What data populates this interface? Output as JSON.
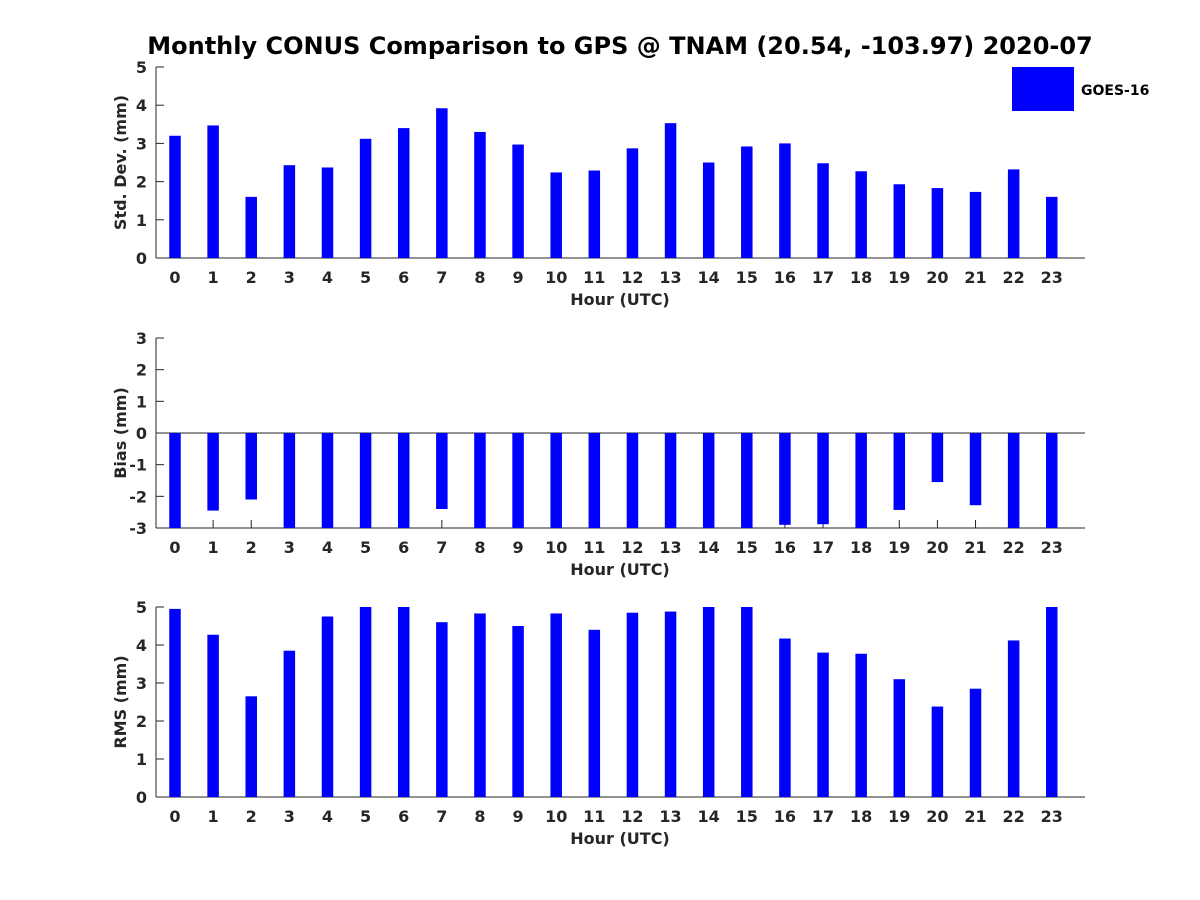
{
  "figure": {
    "title": "Monthly CONUS Comparison to GPS @ TNAM (20.54, -103.97) 2020-07"
  },
  "legend": {
    "label": "GOES-16",
    "color": "#0000ff",
    "placement": "top-right"
  },
  "chart_data": [
    {
      "type": "bar",
      "categories": [
        "0",
        "1",
        "2",
        "3",
        "4",
        "5",
        "6",
        "7",
        "8",
        "9",
        "10",
        "11",
        "12",
        "13",
        "14",
        "15",
        "16",
        "17",
        "18",
        "19",
        "20",
        "21",
        "22",
        "23"
      ],
      "series": [
        {
          "name": "GOES-16",
          "color": "#0000ff",
          "values": [
            3.2,
            3.47,
            1.6,
            2.43,
            2.37,
            3.12,
            3.4,
            3.92,
            3.3,
            2.97,
            2.24,
            2.29,
            2.87,
            3.53,
            2.5,
            2.92,
            3.0,
            2.48,
            2.27,
            1.93,
            1.83,
            1.73,
            2.32,
            1.6
          ]
        }
      ],
      "xlabel": "Hour (UTC)",
      "ylabel": "Std. Dev. (mm)",
      "ylim": [
        0,
        5
      ],
      "yticks": [
        0,
        1,
        2,
        3,
        4,
        5
      ]
    },
    {
      "type": "bar",
      "categories": [
        "0",
        "1",
        "2",
        "3",
        "4",
        "5",
        "6",
        "7",
        "8",
        "9",
        "10",
        "11",
        "12",
        "13",
        "14",
        "15",
        "16",
        "17",
        "18",
        "19",
        "20",
        "21",
        "22",
        "23"
      ],
      "series": [
        {
          "name": "GOES-16",
          "color": "#0000ff",
          "values": [
            -3.0,
            -2.45,
            -2.1,
            -3.0,
            -3.0,
            -3.0,
            -3.0,
            -2.4,
            -3.0,
            -3.0,
            -3.0,
            -3.0,
            -3.0,
            -3.0,
            -3.0,
            -3.0,
            -2.9,
            -2.88,
            -3.0,
            -2.43,
            -1.55,
            -2.28,
            -3.0,
            -3.0
          ]
        }
      ],
      "xlabel": "Hour (UTC)",
      "ylabel": "Bias (mm)",
      "ylim": [
        -3,
        3
      ],
      "yticks": [
        -3,
        -2,
        -1,
        0,
        1,
        2,
        3
      ]
    },
    {
      "type": "bar",
      "categories": [
        "0",
        "1",
        "2",
        "3",
        "4",
        "5",
        "6",
        "7",
        "8",
        "9",
        "10",
        "11",
        "12",
        "13",
        "14",
        "15",
        "16",
        "17",
        "18",
        "19",
        "20",
        "21",
        "22",
        "23"
      ],
      "series": [
        {
          "name": "GOES-16",
          "color": "#0000ff",
          "values": [
            4.95,
            4.27,
            2.65,
            3.85,
            4.75,
            5.0,
            5.0,
            4.6,
            4.83,
            4.5,
            4.83,
            4.4,
            4.85,
            4.88,
            5.0,
            5.0,
            4.17,
            3.8,
            3.77,
            3.1,
            2.38,
            2.85,
            4.12,
            5.0
          ]
        }
      ],
      "xlabel": "Hour (UTC)",
      "ylabel": "RMS (mm)",
      "ylim": [
        0,
        5
      ],
      "yticks": [
        0,
        1,
        2,
        3,
        4,
        5
      ]
    }
  ]
}
